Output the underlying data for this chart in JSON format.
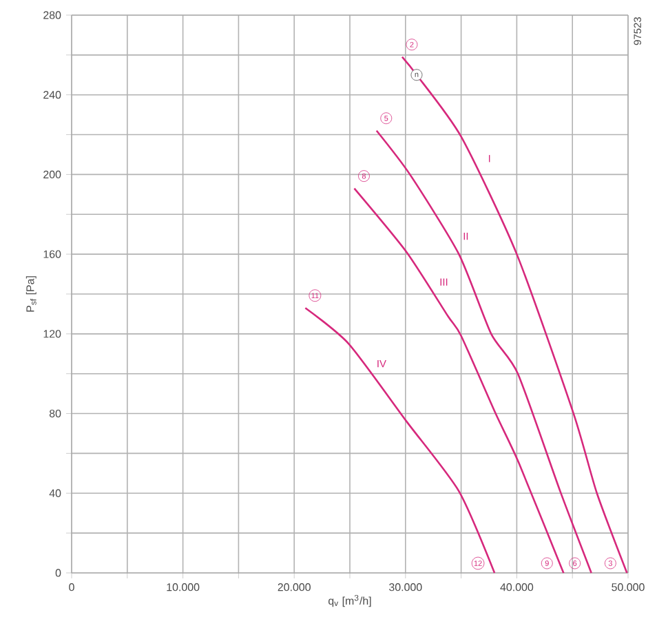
{
  "chart_data": {
    "type": "line",
    "xlabel": "q$_{v}$ [m$^{3}$/h]",
    "ylabel": "P$_{sf}$ [Pa]",
    "xlim": [
      0,
      50000
    ],
    "ylim": [
      0,
      280
    ],
    "xticks": [
      0,
      {
        "value": 5000,
        "label": null
      },
      {
        "value": 10000,
        "label": "10.000"
      },
      {
        "value": 15000,
        "label": null
      },
      {
        "value": 20000,
        "label": "20.000"
      },
      {
        "value": 25000,
        "label": null
      },
      {
        "value": 30000,
        "label": "30.000"
      },
      {
        "value": 35000,
        "label": null
      },
      {
        "value": 40000,
        "label": "40.000"
      },
      {
        "value": 45000,
        "label": null
      },
      {
        "value": 50000,
        "label": "50.000"
      }
    ],
    "yticks": [
      0,
      {
        "value": 20,
        "label": null
      },
      40,
      {
        "value": 60,
        "label": null
      },
      80,
      {
        "value": 100,
        "label": null
      },
      120,
      {
        "value": 140,
        "label": null
      },
      160,
      {
        "value": 180,
        "label": null
      },
      200,
      {
        "value": 220,
        "label": null
      },
      240,
      {
        "value": 260,
        "label": null
      },
      280
    ],
    "grid": true,
    "marker": "none",
    "line_style": "solid",
    "series": [
      {
        "color": "#d6287c",
        "x": [
          29700,
          31000,
          35000,
          40000,
          45100,
          47200,
          49900
        ],
        "values": [
          259,
          250,
          219,
          160,
          80,
          40,
          0
        ]
      },
      {
        "color": "#d6287c",
        "x": [
          27400,
          30400,
          34800,
          37700,
          40100,
          43900,
          46700
        ],
        "values": [
          222,
          200,
          160,
          120,
          100,
          41,
          0
        ]
      },
      {
        "color": "#d6287c",
        "x": [
          25400,
          30100,
          33800,
          35000,
          38100,
          40200,
          44200
        ],
        "values": [
          193,
          161,
          129,
          119,
          80,
          55,
          0
        ]
      },
      {
        "color": "#d6287c",
        "x": [
          21000,
          24900,
          30100,
          34800,
          38000
        ],
        "values": [
          133,
          115,
          76,
          41,
          0
        ]
      }
    ],
    "annotations": [
      {
        "text": "2",
        "x": 29700,
        "y": 259
      },
      {
        "text": "n",
        "x": 31000,
        "y": 250
      },
      {
        "text": "5",
        "x": 27400,
        "y": 222
      },
      {
        "text": "8",
        "x": 25400,
        "y": 193
      },
      {
        "text": "11",
        "x": 21000,
        "y": 133
      },
      {
        "text": "3",
        "x": 49900,
        "y": 0
      },
      {
        "text": "6",
        "x": 46700,
        "y": 0
      },
      {
        "text": "9",
        "x": 44200,
        "y": 0
      },
      {
        "text": "12",
        "x": 38000,
        "y": 0
      },
      {
        "text": "I",
        "x": 35932,
        "y": 208
      },
      {
        "text": "II",
        "x": 33810,
        "y": 169
      },
      {
        "text": "III",
        "x": 31834,
        "y": 146
      },
      {
        "text": "IV",
        "x": 26233,
        "y": 105
      },
      "97523"
    ]
  }
}
